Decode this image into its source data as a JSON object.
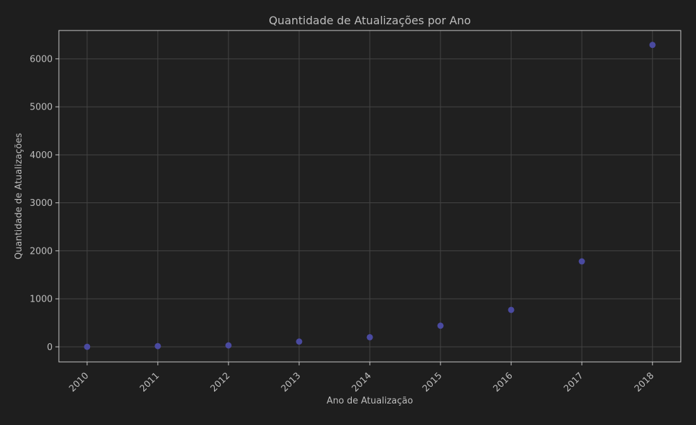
{
  "chart_data": {
    "type": "scatter",
    "title": "Quantidade de Atualizações por Ano",
    "xlabel": "Ano de Atualização",
    "ylabel": "Quantidade de Atualizações",
    "x": [
      2010,
      2011,
      2012,
      2013,
      2014,
      2015,
      2016,
      2017,
      2018
    ],
    "y": [
      1,
      15,
      30,
      110,
      200,
      440,
      770,
      1780,
      6290
    ],
    "xlim": [
      2009.6,
      2018.4
    ],
    "ylim": [
      -314,
      6590
    ],
    "xticks": [
      "2010",
      "2011",
      "2012",
      "2013",
      "2014",
      "2015",
      "2016",
      "2017",
      "2018"
    ],
    "yticks": [
      0,
      1000,
      2000,
      3000,
      4000,
      5000,
      6000
    ],
    "grid": true,
    "colors": {
      "background": "#1e1e1e",
      "plot_background": "#202020",
      "grid": "#444444",
      "axis": "#c9c9c9",
      "text": "#bdbdbd",
      "marker": "#4a4aa0"
    }
  }
}
